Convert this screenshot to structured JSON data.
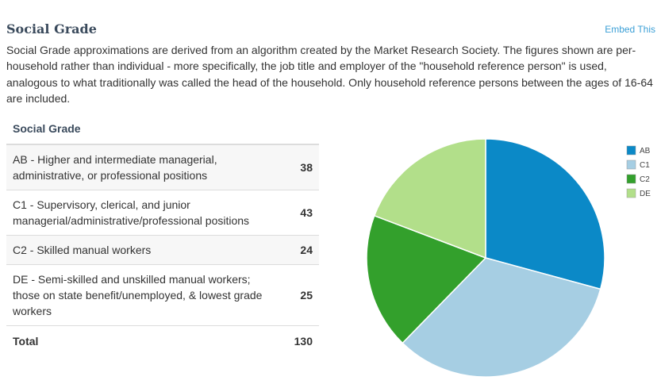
{
  "header": {
    "title": "Social Grade",
    "embed_label": "Embed This"
  },
  "description": "Social Grade approximations are derived from an algorithm created by the Market Research Society. The figures shown are per-household rather than individual - more specifically, the job title and employer of the \"household reference person\" is used, analogous to what traditionally was called the head of the household. Only household reference persons between the ages of 16-64 are included.",
  "table": {
    "header": "Social Grade",
    "rows": [
      {
        "label": "AB - Higher and intermediate managerial, administrative, or professional positions",
        "value": "38"
      },
      {
        "label": "C1 - Supervisory, clerical, and junior managerial/administrative/professional positions",
        "value": "43"
      },
      {
        "label": "C2 - Skilled manual workers",
        "value": "24"
      },
      {
        "label": "DE - Semi-skilled and unskilled manual workers; those on state benefit/unemployed, & lowest grade workers",
        "value": "25"
      }
    ],
    "total_label": "Total",
    "total_value": "130"
  },
  "chart_data": {
    "type": "pie",
    "categories": [
      "AB",
      "C1",
      "C2",
      "DE"
    ],
    "values": [
      38,
      43,
      24,
      25
    ],
    "colors": [
      "#0b89c7",
      "#a6cee3",
      "#33a02c",
      "#b2df8a"
    ],
    "legend": "right"
  }
}
